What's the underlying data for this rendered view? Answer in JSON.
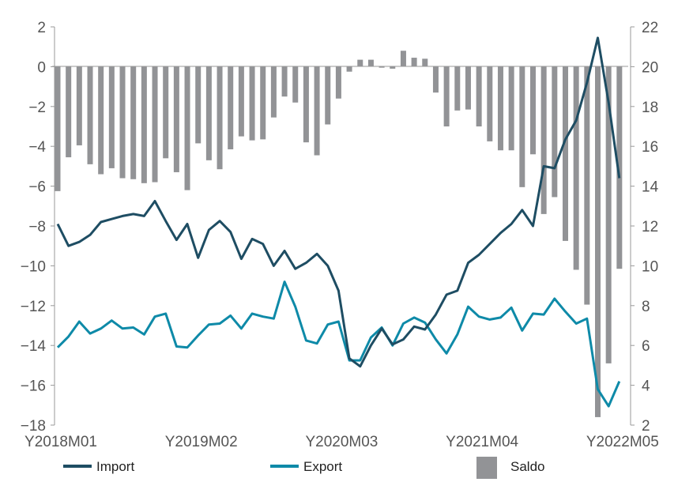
{
  "chart_data": {
    "type": "bar+line",
    "title": "",
    "colors": {
      "import": "#1e4d63",
      "export": "#0e8aa8",
      "saldo": "#929396"
    },
    "left_axis": {
      "ylim": [
        -18,
        2
      ],
      "ticks": [
        2,
        0,
        -2,
        -4,
        -6,
        -8,
        -10,
        -12,
        -14,
        -16,
        -18
      ],
      "labels": [
        "2",
        "0",
        "−2",
        "−4",
        "−6",
        "−8",
        "−10",
        "−12",
        "−14",
        "−16",
        "−18"
      ]
    },
    "right_axis": {
      "ylim": [
        2,
        22
      ],
      "ticks": [
        22,
        20,
        18,
        16,
        14,
        12,
        10,
        8,
        6,
        4,
        2
      ],
      "labels": [
        "22",
        "20",
        "18",
        "16",
        "14",
        "12",
        "10",
        "8",
        "6",
        "4",
        "2"
      ]
    },
    "x_tick_labels": [
      {
        "index": 0,
        "label": "Y2018M01"
      },
      {
        "index": 13,
        "label": "Y2019M02"
      },
      {
        "index": 26,
        "label": "Y2020M03"
      },
      {
        "index": 39,
        "label": "Y2021M04"
      },
      {
        "index": 52,
        "label": "Y2022M05"
      }
    ],
    "series": [
      {
        "name": "Import",
        "type": "line",
        "axis": "right",
        "values": [
          12.1,
          11.0,
          11.2,
          11.55,
          12.2,
          12.35,
          12.5,
          12.6,
          12.5,
          13.25,
          12.25,
          11.3,
          12.1,
          10.4,
          11.8,
          12.25,
          11.7,
          10.35,
          11.35,
          11.1,
          10.0,
          10.75,
          9.85,
          10.15,
          10.6,
          10.0,
          8.75,
          5.35,
          4.95,
          6.0,
          6.85,
          6.05,
          6.3,
          6.95,
          6.8,
          7.55,
          8.55,
          8.75,
          10.15,
          10.55,
          11.1,
          11.65,
          12.1,
          12.8,
          12.0,
          15.0,
          14.9,
          16.35,
          17.3,
          19.2,
          21.45,
          18.2,
          14.4
        ]
      },
      {
        "name": "Export",
        "type": "line",
        "axis": "right",
        "values": [
          5.9,
          6.45,
          7.2,
          6.6,
          6.85,
          7.25,
          6.85,
          6.9,
          6.55,
          7.45,
          7.6,
          5.95,
          5.9,
          6.5,
          7.05,
          7.1,
          7.5,
          6.85,
          7.6,
          7.45,
          7.35,
          9.2,
          7.95,
          6.25,
          6.1,
          7.05,
          7.2,
          5.25,
          5.25,
          6.4,
          6.9,
          6.0,
          7.1,
          7.4,
          7.15,
          6.3,
          5.6,
          6.55,
          7.95,
          7.45,
          7.3,
          7.4,
          7.9,
          6.75,
          7.6,
          7.55,
          8.35,
          7.7,
          7.1,
          7.35,
          3.8,
          2.95,
          4.2
        ]
      },
      {
        "name": "Saldo",
        "type": "bar",
        "axis": "left",
        "values": [
          -6.25,
          -4.55,
          -3.95,
          -4.9,
          -5.4,
          -5.1,
          -5.6,
          -5.65,
          -5.85,
          -5.8,
          -4.6,
          -5.3,
          -6.2,
          -3.85,
          -4.7,
          -5.15,
          -4.15,
          -3.5,
          -3.7,
          -3.65,
          -2.55,
          -1.5,
          -1.8,
          -3.8,
          -4.45,
          -2.9,
          -1.6,
          -0.25,
          0.35,
          0.35,
          -0.05,
          -0.1,
          0.8,
          0.45,
          0.4,
          -1.3,
          -3.0,
          -2.2,
          -2.15,
          -3.0,
          -3.75,
          -4.2,
          -4.2,
          -6.05,
          -4.4,
          -7.4,
          -6.55,
          -8.75,
          -10.2,
          -11.95,
          -17.6,
          -14.9,
          -10.15
        ]
      }
    ],
    "legend": {
      "placement": "bottom",
      "items": [
        "Import",
        "Export",
        "Saldo"
      ]
    }
  }
}
